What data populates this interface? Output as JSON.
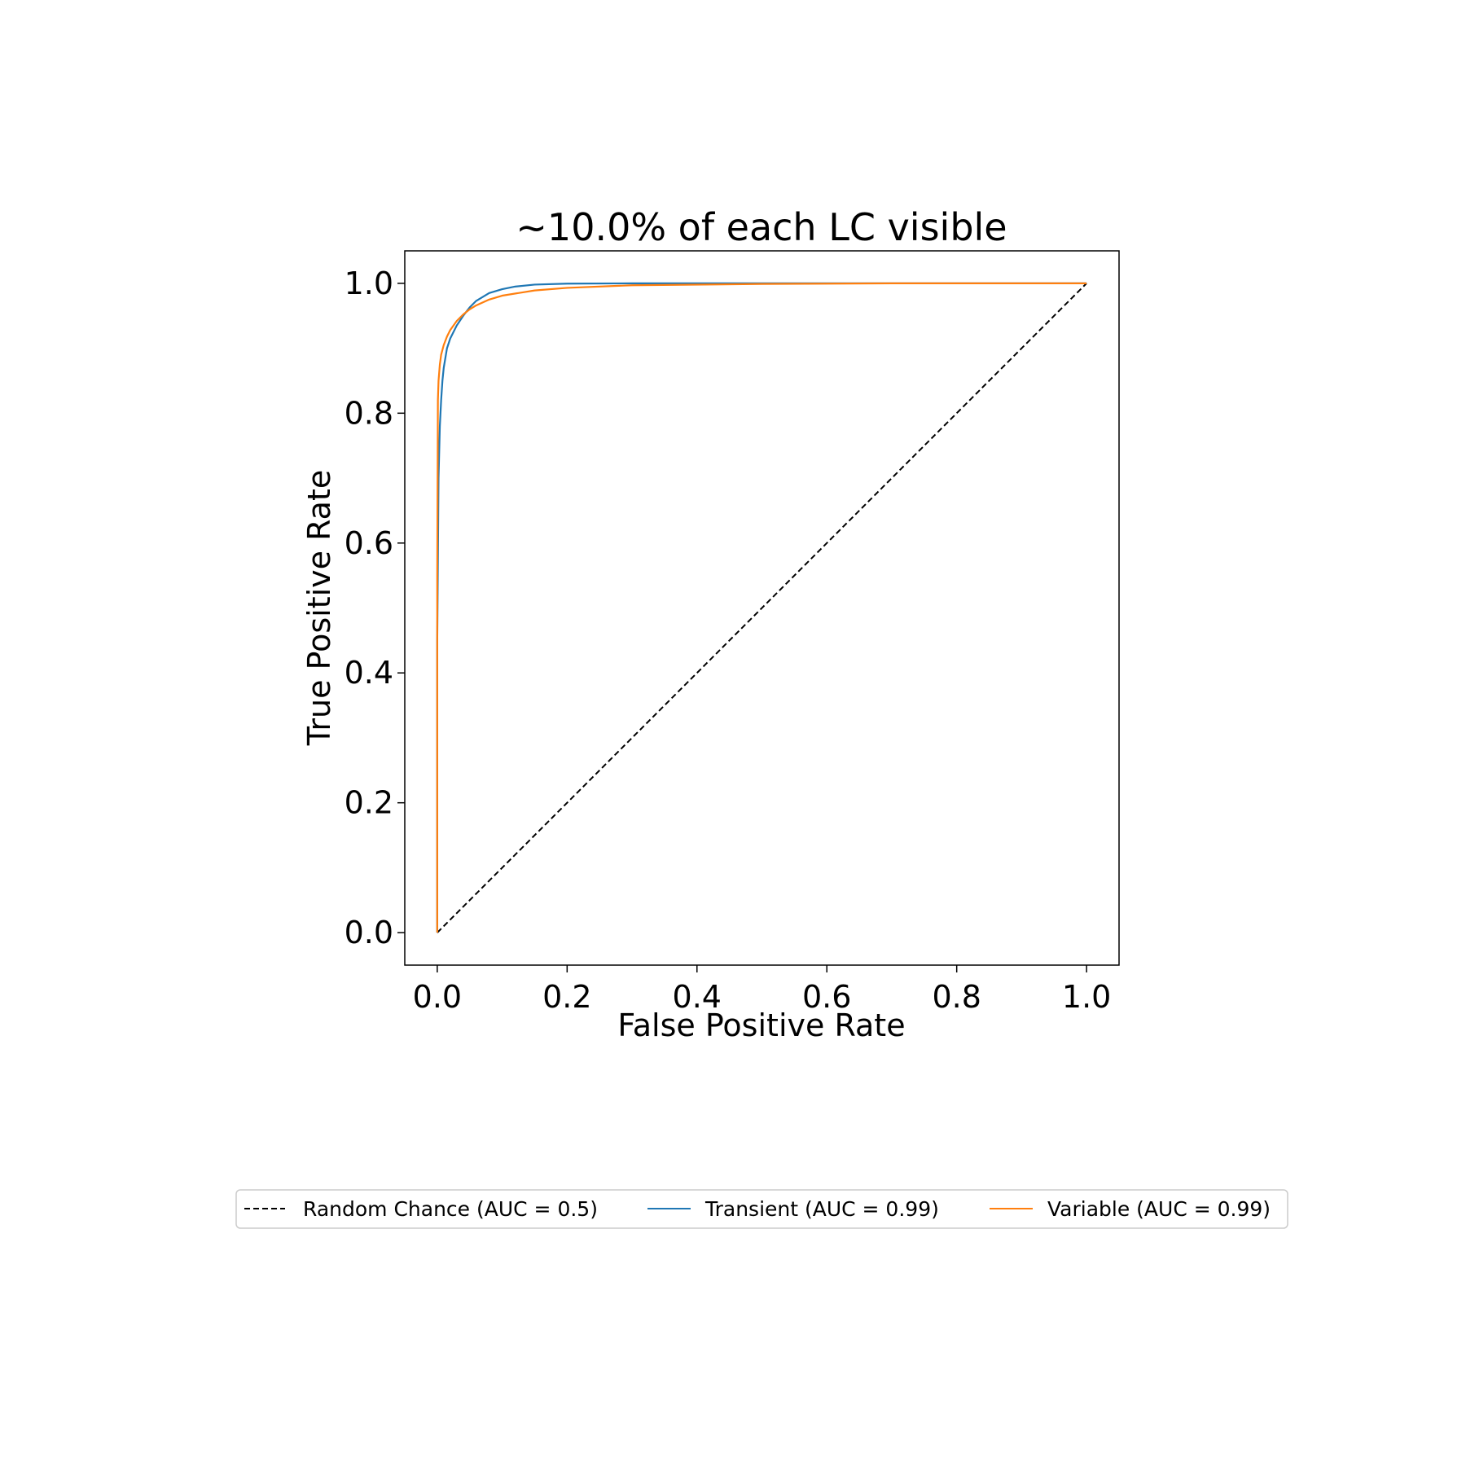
{
  "chart_data": {
    "type": "line",
    "title": "~10.0% of each LC visible",
    "xlabel": "False Positive Rate",
    "ylabel": "True Positive Rate",
    "xlim": [
      -0.05,
      1.05
    ],
    "ylim": [
      -0.05,
      1.05
    ],
    "xticks": [
      "0.0",
      "0.2",
      "0.4",
      "0.6",
      "0.8",
      "1.0"
    ],
    "yticks": [
      "0.0",
      "0.2",
      "0.4",
      "0.6",
      "0.8",
      "1.0"
    ],
    "grid": false,
    "legend_position": "bottom-center",
    "series": [
      {
        "name": "Random Chance (AUC = 0.5)",
        "color": "#000000",
        "style": "dashed",
        "x": [
          0.0,
          1.0
        ],
        "y": [
          0.0,
          1.0
        ]
      },
      {
        "name": "Transient (AUC = 0.99)",
        "color": "#1f77b4",
        "style": "solid",
        "x": [
          0.0,
          0.0,
          0.002,
          0.004,
          0.006,
          0.008,
          0.01,
          0.015,
          0.02,
          0.03,
          0.04,
          0.05,
          0.06,
          0.08,
          0.1,
          0.12,
          0.15,
          0.2,
          0.3,
          0.5,
          1.0
        ],
        "y": [
          0.0,
          0.45,
          0.7,
          0.78,
          0.82,
          0.85,
          0.87,
          0.9,
          0.915,
          0.935,
          0.95,
          0.963,
          0.973,
          0.985,
          0.991,
          0.995,
          0.998,
          0.9995,
          1.0,
          1.0,
          1.0
        ]
      },
      {
        "name": "Variable (AUC = 0.99)",
        "color": "#ff7f0e",
        "style": "solid",
        "x": [
          0.0,
          0.0,
          0.001,
          0.002,
          0.004,
          0.006,
          0.01,
          0.015,
          0.02,
          0.03,
          0.04,
          0.05,
          0.06,
          0.08,
          0.1,
          0.15,
          0.2,
          0.3,
          0.5,
          0.7,
          1.0
        ],
        "y": [
          0.0,
          0.55,
          0.82,
          0.85,
          0.875,
          0.89,
          0.905,
          0.918,
          0.928,
          0.942,
          0.952,
          0.96,
          0.966,
          0.975,
          0.981,
          0.989,
          0.993,
          0.997,
          0.999,
          1.0,
          1.0
        ]
      }
    ]
  }
}
